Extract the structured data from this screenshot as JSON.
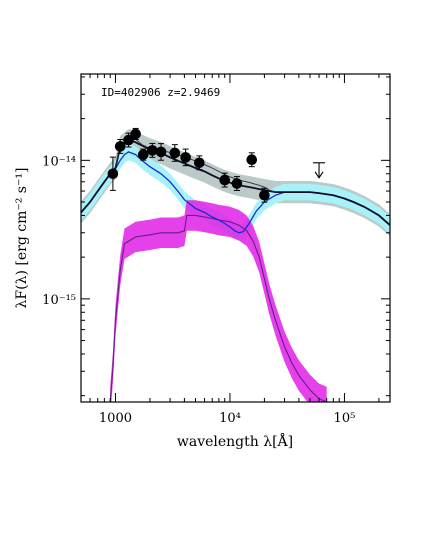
{
  "chart_data": {
    "type": "scatter",
    "title": "",
    "annotation": "ID=402906 z=2.9469",
    "xlabel": "wavelength λ[Å]",
    "ylabel": "λF(λ) [erg cm⁻² s⁻¹]",
    "xscale": "log",
    "yscale": "log",
    "xlim": [
      500,
      250000
    ],
    "ylim": [
      1.8e-16,
      4.2e-14
    ],
    "grid": false,
    "x_ticks": [
      {
        "value": 1000,
        "label": "1000"
      },
      {
        "value": 10000,
        "label": "10⁴"
      },
      {
        "value": 100000,
        "label": "10⁵"
      }
    ],
    "y_ticks": [
      {
        "value": 1e-15,
        "label": "10⁻¹⁵"
      },
      {
        "value": 1e-14,
        "label": "10⁻¹⁴"
      }
    ],
    "colors": {
      "photometry": "#000000",
      "total_model": "#0d0d28",
      "total_band": "#bcc9c9",
      "galaxy_model": "#1c2cc8",
      "galaxy_band": "#a6f2f8",
      "agn_model": "#6a1b8a",
      "agn_band": "#e020e8",
      "observed_model": "#333333"
    },
    "photometry": [
      {
        "x": 950,
        "y": 8e-15,
        "err": 0.12
      },
      {
        "x": 1100,
        "y": 1.26e-14,
        "err": 0.05
      },
      {
        "x": 1300,
        "y": 1.4e-14,
        "err": 0.05
      },
      {
        "x": 1500,
        "y": 1.55e-14,
        "err": 0.04
      },
      {
        "x": 1750,
        "y": 1.1e-14,
        "err": 0.04
      },
      {
        "x": 2100,
        "y": 1.18e-14,
        "err": 0.05
      },
      {
        "x": 2500,
        "y": 1.15e-14,
        "err": 0.06
      },
      {
        "x": 3300,
        "y": 1.13e-14,
        "err": 0.06
      },
      {
        "x": 4100,
        "y": 1.05e-14,
        "err": 0.06
      },
      {
        "x": 5400,
        "y": 9.6e-15,
        "err": 0.05
      },
      {
        "x": 9000,
        "y": 7.2e-15,
        "err": 0.05
      },
      {
        "x": 11500,
        "y": 6.8e-15,
        "err": 0.05
      },
      {
        "x": 15500,
        "y": 1.01e-14,
        "err": 0.05
      },
      {
        "x": 20000,
        "y": 5.6e-15,
        "err": 0.05
      }
    ],
    "upper_limit": {
      "x": 60000,
      "y": 9.6e-15
    },
    "series": [
      {
        "role": "total",
        "x": [
          500,
          600,
          700,
          800,
          900,
          1000,
          1100,
          1200,
          1300,
          1500,
          1700,
          2000,
          2500,
          3000,
          4000,
          5000,
          6000,
          7000,
          8000,
          9000,
          10000,
          12000,
          15000,
          18000,
          20000,
          25000,
          30000,
          40000,
          50000,
          60000,
          80000,
          100000,
          120000,
          150000,
          200000,
          250000
        ],
        "y": [
          4.2e-15,
          5e-15,
          6e-15,
          7e-15,
          8e-15,
          8.8e-15,
          1.25e-14,
          1.32e-14,
          1.4e-14,
          1.35e-14,
          1.28e-14,
          1.2e-14,
          1.13e-14,
          1.05e-14,
          9.5e-15,
          8.8e-15,
          8.3e-15,
          7.8e-15,
          7.4e-15,
          7.1e-15,
          6.9e-15,
          6.6e-15,
          6.4e-15,
          6.2e-15,
          6.1e-15,
          5.9e-15,
          5.9e-15,
          5.9e-15,
          5.9e-15,
          5.8e-15,
          5.6e-15,
          5.3e-15,
          5e-15,
          4.6e-15,
          4e-15,
          3.4e-15
        ],
        "band_dex": 0.08
      },
      {
        "role": "galaxy",
        "x": [
          500,
          600,
          700,
          800,
          900,
          1000,
          1100,
          1200,
          1300,
          1500,
          1700,
          2000,
          2500,
          3000,
          3500,
          4000,
          5000,
          6000,
          7000,
          8000,
          9000,
          10000,
          11000,
          12000,
          13000,
          14000,
          15000,
          17000,
          20000,
          25000,
          30000,
          40000,
          50000,
          60000,
          80000,
          100000,
          120000,
          150000,
          200000,
          250000
        ],
        "y": [
          4.2e-15,
          5e-15,
          6e-15,
          7e-15,
          7.9e-15,
          8.7e-15,
          1e-14,
          1.1e-14,
          1.15e-14,
          1.1e-14,
          1e-14,
          9e-15,
          8e-15,
          7e-15,
          6e-15,
          5.2e-15,
          4.5e-15,
          4.2e-15,
          3.9e-15,
          3.7e-15,
          3.5e-15,
          3.3e-15,
          3.1e-15,
          3e-15,
          3.05e-15,
          3.3e-15,
          3.6e-15,
          4.3e-15,
          5e-15,
          5.6e-15,
          5.9e-15,
          5.9e-15,
          5.9e-15,
          5.8e-15,
          5.6e-15,
          5.3e-15,
          5e-15,
          4.6e-15,
          4e-15,
          3.4e-15
        ],
        "band_dex": 0.06
      },
      {
        "role": "agn",
        "x": [
          900,
          950,
          1000,
          1100,
          1200,
          1500,
          2000,
          2500,
          3000,
          3500,
          4000,
          4200,
          5000,
          6000,
          7000,
          8000,
          10000,
          12000,
          14000,
          16000,
          18000,
          20000,
          22000,
          25000,
          30000,
          35000,
          40000,
          50000,
          60000,
          70000
        ],
        "y": [
          1.8e-16,
          3.2e-16,
          7e-16,
          1.6e-15,
          2.5e-15,
          2.8e-15,
          2.9e-15,
          3e-15,
          3e-15,
          3e-15,
          3.1e-15,
          4e-15,
          4e-15,
          3.9e-15,
          3.8e-15,
          3.7e-15,
          3.6e-15,
          3.4e-15,
          3.1e-15,
          2.6e-15,
          2e-15,
          1.4e-15,
          1e-15,
          7e-16,
          4.5e-16,
          3.4e-16,
          2.8e-16,
          2.2e-16,
          1.9e-16,
          1.8e-16
        ],
        "band_dex": 0.11
      },
      {
        "role": "observed",
        "x": [
          1000,
          1100,
          1200,
          1300,
          1500,
          1700,
          2000,
          2500,
          3000,
          4000,
          5000,
          6000,
          7000,
          8000,
          9000,
          10000,
          12000,
          15000,
          18000,
          20000,
          22000,
          25000
        ],
        "y": [
          9e-15,
          1.25e-14,
          1.3e-14,
          1.38e-14,
          1.42e-14,
          1.3e-14,
          1.22e-14,
          1.18e-14,
          1.14e-14,
          1.06e-14,
          9.9e-15,
          9.3e-15,
          8.8e-15,
          8.3e-15,
          7.9e-15,
          7.6e-15,
          7.2e-15,
          6.9e-15,
          6.6e-15,
          6.4e-15,
          6.1e-15,
          5.9e-15
        ]
      }
    ]
  }
}
